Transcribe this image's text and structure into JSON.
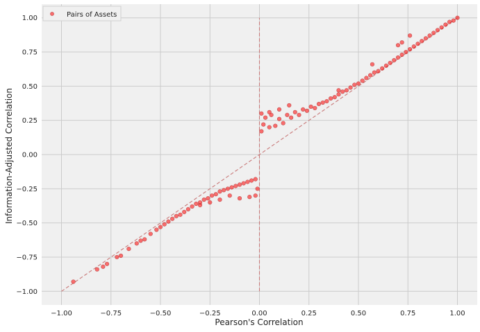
{
  "chart_data": {
    "type": "scatter",
    "title": "",
    "xlabel": "Pearson's Correlation",
    "ylabel": "Information-Adjusted Correlation",
    "xlim": [
      -1.1,
      1.1
    ],
    "ylim": [
      -1.1,
      1.1
    ],
    "xticks": [
      "−1.00",
      "−0.75",
      "−0.50",
      "−0.25",
      "0.00",
      "0.25",
      "0.50",
      "0.75",
      "1.00"
    ],
    "yticks": [
      "−1.00",
      "−0.75",
      "−0.50",
      "−0.25",
      "0.00",
      "0.25",
      "0.50",
      "0.75",
      "1.00"
    ],
    "grid": true,
    "legend": {
      "position": "top-left",
      "entries": [
        "Pairs of Assets"
      ]
    },
    "background_color": "#f0f0f0",
    "marker_color": "#ff0000",
    "marker_edge_color": "#c05050",
    "reference_line_color": "#c87878",
    "series": [
      {
        "name": "Pairs of Assets",
        "points": [
          [
            -0.94,
            -0.93
          ],
          [
            -0.82,
            -0.84
          ],
          [
            -0.79,
            -0.82
          ],
          [
            -0.77,
            -0.8
          ],
          [
            -0.72,
            -0.75
          ],
          [
            -0.7,
            -0.74
          ],
          [
            -0.66,
            -0.69
          ],
          [
            -0.62,
            -0.65
          ],
          [
            -0.6,
            -0.63
          ],
          [
            -0.58,
            -0.62
          ],
          [
            -0.55,
            -0.58
          ],
          [
            -0.52,
            -0.55
          ],
          [
            -0.5,
            -0.53
          ],
          [
            -0.48,
            -0.51
          ],
          [
            -0.46,
            -0.49
          ],
          [
            -0.44,
            -0.47
          ],
          [
            -0.42,
            -0.45
          ],
          [
            -0.4,
            -0.44
          ],
          [
            -0.38,
            -0.42
          ],
          [
            -0.36,
            -0.4
          ],
          [
            -0.34,
            -0.38
          ],
          [
            -0.32,
            -0.36
          ],
          [
            -0.3,
            -0.35
          ],
          [
            -0.28,
            -0.33
          ],
          [
            -0.26,
            -0.32
          ],
          [
            -0.24,
            -0.3
          ],
          [
            -0.22,
            -0.29
          ],
          [
            -0.2,
            -0.27
          ],
          [
            -0.18,
            -0.26
          ],
          [
            -0.16,
            -0.25
          ],
          [
            -0.14,
            -0.24
          ],
          [
            -0.12,
            -0.23
          ],
          [
            -0.1,
            -0.22
          ],
          [
            -0.08,
            -0.21
          ],
          [
            -0.06,
            -0.2
          ],
          [
            -0.04,
            -0.19
          ],
          [
            -0.02,
            -0.18
          ],
          [
            -0.02,
            -0.3
          ],
          [
            -0.01,
            -0.25
          ],
          [
            -0.2,
            -0.33
          ],
          [
            -0.15,
            -0.3
          ],
          [
            -0.1,
            -0.32
          ],
          [
            -0.05,
            -0.31
          ],
          [
            -0.3,
            -0.37
          ],
          [
            -0.25,
            -0.35
          ],
          [
            0.01,
            0.17
          ],
          [
            0.01,
            0.3
          ],
          [
            0.02,
            0.22
          ],
          [
            0.03,
            0.27
          ],
          [
            0.05,
            0.2
          ],
          [
            0.06,
            0.29
          ],
          [
            0.08,
            0.21
          ],
          [
            0.1,
            0.26
          ],
          [
            0.12,
            0.23
          ],
          [
            0.14,
            0.29
          ],
          [
            0.16,
            0.27
          ],
          [
            0.18,
            0.31
          ],
          [
            0.2,
            0.29
          ],
          [
            0.22,
            0.33
          ],
          [
            0.24,
            0.32
          ],
          [
            0.26,
            0.35
          ],
          [
            0.28,
            0.34
          ],
          [
            0.3,
            0.37
          ],
          [
            0.32,
            0.38
          ],
          [
            0.34,
            0.39
          ],
          [
            0.36,
            0.41
          ],
          [
            0.38,
            0.42
          ],
          [
            0.4,
            0.44
          ],
          [
            0.42,
            0.46
          ],
          [
            0.44,
            0.47
          ],
          [
            0.46,
            0.49
          ],
          [
            0.48,
            0.51
          ],
          [
            0.5,
            0.52
          ],
          [
            0.52,
            0.54
          ],
          [
            0.54,
            0.56
          ],
          [
            0.56,
            0.58
          ],
          [
            0.58,
            0.6
          ],
          [
            0.6,
            0.61
          ],
          [
            0.62,
            0.63
          ],
          [
            0.64,
            0.65
          ],
          [
            0.66,
            0.67
          ],
          [
            0.68,
            0.69
          ],
          [
            0.7,
            0.71
          ],
          [
            0.72,
            0.73
          ],
          [
            0.74,
            0.75
          ],
          [
            0.76,
            0.77
          ],
          [
            0.78,
            0.79
          ],
          [
            0.8,
            0.81
          ],
          [
            0.82,
            0.83
          ],
          [
            0.84,
            0.85
          ],
          [
            0.86,
            0.87
          ],
          [
            0.88,
            0.89
          ],
          [
            0.9,
            0.91
          ],
          [
            0.92,
            0.93
          ],
          [
            0.94,
            0.95
          ],
          [
            0.96,
            0.97
          ],
          [
            0.98,
            0.98
          ],
          [
            1.0,
            1.0
          ],
          [
            0.7,
            0.8
          ],
          [
            0.72,
            0.82
          ],
          [
            0.76,
            0.87
          ],
          [
            0.57,
            0.66
          ],
          [
            0.1,
            0.33
          ],
          [
            0.15,
            0.36
          ],
          [
            0.4,
            0.47
          ],
          [
            0.05,
            0.31
          ]
        ]
      }
    ]
  }
}
